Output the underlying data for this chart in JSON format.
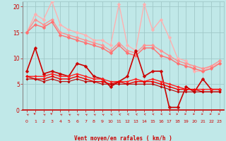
{
  "xlabel": "Vent moyen/en rafales ( km/h )",
  "bg_color": "#c0e8e8",
  "grid_color": "#a0c8c8",
  "xlim": [
    -0.5,
    23.5
  ],
  "ylim": [
    0,
    21
  ],
  "yticks": [
    0,
    5,
    10,
    15,
    20
  ],
  "xticks": [
    0,
    1,
    2,
    3,
    4,
    5,
    6,
    7,
    8,
    9,
    10,
    11,
    12,
    13,
    14,
    15,
    16,
    17,
    18,
    19,
    20,
    21,
    22,
    23
  ],
  "font_color": "#cc0000",
  "series": [
    {
      "y": [
        15.0,
        18.5,
        17.5,
        21.0,
        16.5,
        15.5,
        15.0,
        14.5,
        13.5,
        13.5,
        12.5,
        20.5,
        12.5,
        11.5,
        20.5,
        15.5,
        17.5,
        14.0,
        10.0,
        9.5,
        7.5,
        7.5,
        8.5,
        9.0
      ],
      "color": "#ffb0b0",
      "lw": 1.0,
      "ms": 2.5
    },
    {
      "y": [
        15.0,
        17.5,
        16.5,
        17.5,
        15.0,
        14.5,
        14.0,
        13.5,
        13.0,
        12.5,
        11.5,
        13.0,
        11.5,
        11.0,
        12.5,
        12.5,
        11.5,
        10.5,
        9.5,
        9.0,
        8.5,
        8.0,
        8.5,
        9.5
      ],
      "color": "#ff9090",
      "lw": 1.0,
      "ms": 2.5
    },
    {
      "y": [
        15.0,
        16.5,
        16.0,
        17.0,
        14.5,
        14.0,
        13.5,
        13.0,
        12.5,
        12.0,
        11.0,
        12.5,
        11.0,
        10.5,
        12.0,
        12.0,
        10.5,
        10.0,
        9.0,
        8.5,
        8.0,
        7.5,
        8.0,
        9.0
      ],
      "color": "#ff7070",
      "lw": 1.0,
      "ms": 2.5
    },
    {
      "y": [
        7.5,
        12.0,
        7.0,
        7.5,
        7.0,
        6.5,
        9.0,
        8.5,
        6.5,
        6.0,
        4.5,
        5.5,
        6.5,
        11.5,
        6.5,
        7.5,
        7.5,
        0.5,
        0.5,
        4.5,
        3.5,
        6.0,
        4.0,
        4.0
      ],
      "color": "#cc0000",
      "lw": 1.2,
      "ms": 2.5
    },
    {
      "y": [
        6.5,
        6.5,
        6.5,
        7.0,
        6.5,
        6.5,
        7.0,
        6.5,
        6.0,
        6.0,
        5.5,
        5.5,
        5.5,
        6.0,
        5.5,
        6.0,
        5.5,
        5.0,
        4.5,
        4.0,
        4.0,
        4.0,
        4.0,
        4.0
      ],
      "color": "#ff2020",
      "lw": 1.0,
      "ms": 2.0
    },
    {
      "y": [
        6.5,
        6.0,
        6.0,
        6.5,
        6.0,
        6.0,
        6.5,
        6.0,
        5.5,
        5.5,
        5.0,
        5.5,
        5.0,
        5.5,
        5.5,
        5.5,
        5.0,
        4.5,
        4.0,
        4.0,
        4.0,
        3.5,
        3.5,
        3.5
      ],
      "color": "#ee0000",
      "lw": 1.0,
      "ms": 2.0
    },
    {
      "y": [
        6.0,
        6.0,
        5.5,
        6.0,
        5.5,
        5.5,
        6.0,
        5.5,
        5.5,
        5.0,
        5.0,
        5.0,
        5.0,
        5.0,
        5.0,
        5.0,
        4.5,
        4.0,
        3.5,
        3.5,
        3.5,
        3.5,
        3.5,
        3.5
      ],
      "color": "#bb0000",
      "lw": 0.8,
      "ms": 1.8
    }
  ],
  "wind_arrows": {
    "angles": [
      225,
      220,
      225,
      220,
      225,
      225,
      225,
      225,
      225,
      225,
      230,
      235,
      240,
      235,
      245,
      255,
      265,
      270,
      90,
      80,
      80,
      80,
      80,
      85
    ],
    "color": "#cc0000"
  }
}
